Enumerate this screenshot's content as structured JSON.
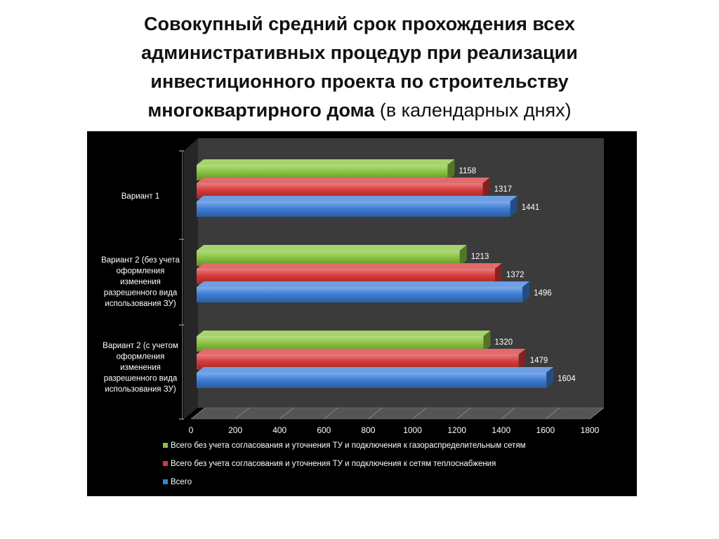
{
  "title": {
    "bold": "Совокупный средний срок прохождения всех административных процедур при реализации инвестиционного проекта по строительству многоквартирного дома",
    "normal": "(в календарных днях)"
  },
  "chart_data": {
    "type": "bar",
    "orientation": "horizontal",
    "style": "3d",
    "categories": [
      "Вариант 1",
      "Вариант 2 (без учета оформления изменения разрешенного вида использования ЗУ)",
      "Вариант 2 (с учетом оформления изменения разрешенного вида использования ЗУ)"
    ],
    "category_lines": [
      [
        "Вариант 1"
      ],
      [
        "Вариант 2 (без учета",
        "оформления",
        "изменения",
        "разрешенного вида",
        "использования ЗУ)"
      ],
      [
        "Вариант 2 (с учетом",
        "оформления",
        "изменения",
        "разрешенного вида",
        "использования ЗУ)"
      ]
    ],
    "series": [
      {
        "name": "Всего без учета согласования и уточнения ТУ и подключения к газораспределительным сетям",
        "color": "#8ac43f",
        "values": [
          1158,
          1213,
          1320
        ]
      },
      {
        "name": "Всего без учета согласования и уточнения ТУ и подключения к сетям теплоснабжения",
        "color": "#d73a3a",
        "values": [
          1317,
          1372,
          1479
        ]
      },
      {
        "name": "Всего",
        "color": "#3e7fd8",
        "values": [
          1441,
          1496,
          1604
        ]
      }
    ],
    "xlim": [
      0,
      1800
    ],
    "xticks": [
      0,
      200,
      400,
      600,
      800,
      1000,
      1200,
      1400,
      1600,
      1800
    ],
    "grid": true,
    "legend": "bottom",
    "background": "#000000"
  }
}
